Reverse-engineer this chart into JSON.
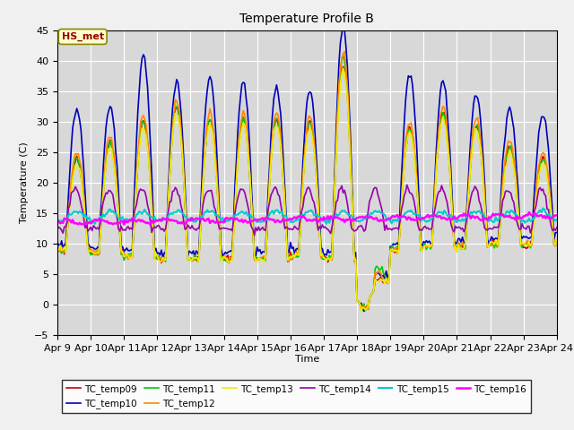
{
  "title": "Temperature Profile B",
  "xlabel": "Time",
  "ylabel": "Temperature (C)",
  "ylim": [
    -5,
    45
  ],
  "xlim": [
    0,
    360
  ],
  "plot_bgcolor": "#d8d8d8",
  "fig_bgcolor": "#f0f0f0",
  "series_colors": {
    "TC_temp09": "#cc0000",
    "TC_temp10": "#0000bb",
    "TC_temp11": "#00cc00",
    "TC_temp12": "#ff8800",
    "TC_temp13": "#eeee00",
    "TC_temp14": "#9900aa",
    "TC_temp15": "#00cccc",
    "TC_temp16": "#ff00ff"
  },
  "series_lw": {
    "TC_temp09": 1.2,
    "TC_temp10": 1.2,
    "TC_temp11": 1.2,
    "TC_temp12": 1.2,
    "TC_temp13": 1.2,
    "TC_temp14": 1.2,
    "TC_temp15": 1.5,
    "TC_temp16": 1.8
  },
  "xtick_labels": [
    "Apr 9",
    "Apr 10",
    "Apr 11",
    "Apr 12",
    "Apr 13",
    "Apr 14",
    "Apr 15",
    "Apr 16",
    "Apr 17",
    "Apr 18",
    "Apr 19",
    "Apr 20",
    "Apr 21",
    "Apr 22",
    "Apr 23",
    "Apr 24"
  ],
  "xtick_positions": [
    0,
    24,
    48,
    72,
    96,
    120,
    144,
    168,
    192,
    216,
    240,
    264,
    288,
    312,
    336,
    360
  ],
  "ytick_vals": [
    -5,
    0,
    5,
    10,
    15,
    20,
    25,
    30,
    35,
    40,
    45
  ],
  "annotation_text": "HS_met",
  "annotation_fgcolor": "#990000",
  "annotation_bgcolor": "#ffffcc",
  "annotation_edgecolor": "#888800"
}
